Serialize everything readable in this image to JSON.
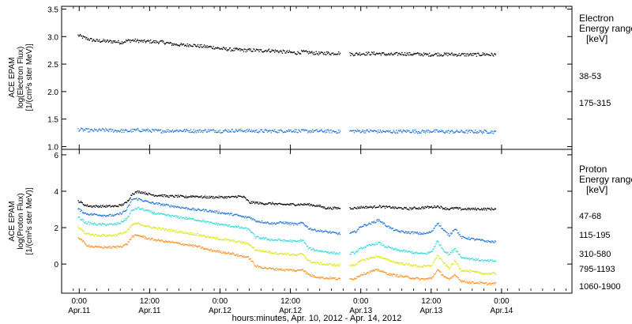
{
  "chart_data": [
    {
      "type": "scatter",
      "panel": "electron",
      "ylabel_lines": [
        "ACE EPAM",
        "log(Electron Flux)",
        "[1/(cm²s ster MeV)]"
      ],
      "ylim": [
        0.95,
        3.55
      ],
      "y_ticks": [
        1.0,
        1.5,
        2.0,
        2.5,
        3.0,
        3.5
      ],
      "y_tick_labels": [
        "1.0",
        "1.5",
        "2.0",
        "2.5",
        "3.0",
        "3.5"
      ],
      "legend_title_lines": [
        "Electron",
        "Energy ranges",
        "[keV]"
      ],
      "legend_placement": "right",
      "series": [
        {
          "name": "38-53",
          "color": "#000000",
          "x": [
            -0.25,
            0.5,
            1,
            2,
            3,
            4,
            5,
            6,
            7,
            8,
            9,
            10,
            11,
            12,
            13,
            14,
            15,
            16,
            17,
            18,
            19,
            20,
            21,
            22,
            23,
            24,
            25,
            26,
            27,
            28,
            29,
            30,
            31,
            32,
            33,
            34,
            35,
            36,
            37,
            38,
            39,
            40,
            41,
            42,
            43,
            44,
            45,
            46,
            47,
            48,
            49,
            50,
            51,
            52,
            53,
            54,
            55,
            56,
            57,
            58,
            59,
            60,
            61,
            62,
            63,
            64,
            65,
            66,
            67,
            68,
            69,
            70,
            71
          ],
          "y": [
            3.03,
            3.0,
            2.98,
            2.95,
            2.93,
            2.93,
            2.92,
            2.92,
            2.9,
            2.93,
            2.94,
            2.93,
            2.92,
            2.92,
            2.91,
            2.91,
            2.89,
            2.87,
            2.86,
            2.85,
            2.86,
            2.84,
            2.83,
            2.82,
            2.81,
            2.79,
            2.78,
            2.77,
            2.77,
            2.76,
            2.76,
            2.76,
            2.75,
            2.76,
            2.75,
            2.74,
            2.73,
            2.72,
            2.71,
            2.73,
            2.72,
            2.71,
            2.7,
            2.71,
            2.7,
            2.71,
            2.7,
            2.69,
            2.69,
            2.7,
            2.7,
            2.7,
            2.7,
            2.69,
            2.68,
            2.69,
            2.7,
            2.69,
            2.69,
            2.69,
            2.68,
            2.68,
            2.69,
            2.68,
            2.69,
            2.68,
            2.68,
            2.68,
            2.68,
            2.68,
            2.69,
            2.68,
            2.68
          ]
        },
        {
          "name": "175-315",
          "color": "#1a73d9",
          "x": [
            -0.25,
            2,
            4,
            6,
            8,
            10,
            12,
            14,
            16,
            18,
            20,
            22,
            24,
            26,
            28,
            30,
            32,
            34,
            36,
            38,
            40,
            42,
            44,
            46,
            48,
            50,
            52,
            54,
            56,
            58,
            60,
            62,
            64,
            66,
            68,
            70,
            71
          ],
          "y": [
            1.32,
            1.3,
            1.31,
            1.3,
            1.29,
            1.31,
            1.3,
            1.29,
            1.3,
            1.3,
            1.29,
            1.3,
            1.29,
            1.3,
            1.3,
            1.29,
            1.29,
            1.29,
            1.3,
            1.29,
            1.29,
            1.29,
            1.28,
            1.29,
            1.29,
            1.29,
            1.28,
            1.28,
            1.29,
            1.28,
            1.29,
            1.28,
            1.28,
            1.28,
            1.28,
            1.28,
            1.27
          ]
        }
      ]
    },
    {
      "type": "scatter",
      "panel": "proton",
      "ylabel_lines": [
        "ACE EPAM",
        "log(Proton Flux)",
        "[1/(cm²s ster MeV)]"
      ],
      "ylim": [
        -1.6,
        6.3
      ],
      "y_ticks": [
        0,
        2,
        4,
        6
      ],
      "y_tick_labels": [
        "0",
        "2",
        "4",
        "6"
      ],
      "legend_title_lines": [
        "Proton",
        "Energy ranges",
        "[keV]"
      ],
      "legend_placement": "right",
      "series": [
        {
          "name": "47-68",
          "color": "#000000",
          "x": [
            -0.25,
            0.5,
            1,
            2,
            3,
            4,
            5,
            6,
            7,
            8,
            9,
            10,
            11,
            12,
            13,
            14,
            15,
            16,
            17,
            18,
            19,
            20,
            21,
            22,
            23,
            24,
            25,
            26,
            27,
            28,
            29,
            30,
            31,
            32,
            33,
            34,
            35,
            36,
            37,
            38,
            39,
            40,
            41,
            42,
            43,
            44,
            45,
            46,
            47,
            48,
            49,
            50,
            51,
            52,
            53,
            54,
            55,
            56,
            57,
            58,
            59,
            60,
            61,
            62,
            63,
            64,
            65,
            66,
            67,
            68,
            69,
            70,
            71
          ],
          "y": [
            3.5,
            3.35,
            3.25,
            3.2,
            3.2,
            3.2,
            3.2,
            3.2,
            3.25,
            3.4,
            3.9,
            4.0,
            3.95,
            3.85,
            3.8,
            3.8,
            3.75,
            3.75,
            3.75,
            3.7,
            3.75,
            3.75,
            3.7,
            3.7,
            3.7,
            3.7,
            3.7,
            3.7,
            3.75,
            3.7,
            3.4,
            3.4,
            3.35,
            3.35,
            3.35,
            3.3,
            3.3,
            3.3,
            3.3,
            3.3,
            3.3,
            3.25,
            3.2,
            3.1,
            3.1,
            3.1,
            3.1,
            3.1,
            3.1,
            3.15,
            3.15,
            3.15,
            3.2,
            3.15,
            3.15,
            3.1,
            3.1,
            3.05,
            3.1,
            3.1,
            3.15,
            3.15,
            3.2,
            3.1,
            3.05,
            3.1,
            3.05,
            3.05,
            3.05,
            3.05,
            3.05,
            3.05,
            3.05
          ]
        },
        {
          "name": "115-195",
          "color": "#1a73d9",
          "x": [
            -0.25,
            0.5,
            1,
            2,
            3,
            4,
            5,
            6,
            7,
            8,
            9,
            10,
            11,
            12,
            13,
            14,
            15,
            16,
            17,
            18,
            19,
            20,
            21,
            22,
            23,
            24,
            25,
            26,
            27,
            28,
            29,
            30,
            31,
            32,
            33,
            34,
            35,
            36,
            37,
            38,
            39,
            40,
            41,
            42,
            43,
            44,
            45,
            46,
            47,
            48,
            49,
            50,
            51,
            52,
            53,
            54,
            55,
            56,
            57,
            58,
            59,
            60,
            61,
            62,
            63,
            64,
            65,
            66,
            67,
            68,
            69,
            70,
            71
          ],
          "y": [
            3.05,
            2.9,
            2.8,
            2.75,
            2.75,
            2.7,
            2.7,
            2.7,
            2.8,
            3.0,
            3.6,
            3.6,
            3.5,
            3.4,
            3.35,
            3.3,
            3.25,
            3.2,
            3.15,
            3.1,
            3.05,
            3.0,
            3.0,
            2.95,
            2.9,
            2.85,
            2.8,
            2.75,
            2.7,
            2.6,
            2.6,
            2.4,
            2.35,
            2.3,
            2.25,
            2.3,
            2.3,
            2.25,
            2.2,
            2.3,
            2.0,
            1.9,
            1.85,
            1.8,
            1.75,
            1.7,
            1.7,
            1.7,
            1.8,
            2.1,
            2.2,
            2.3,
            2.45,
            2.2,
            2.0,
            1.85,
            1.8,
            1.75,
            1.75,
            1.7,
            1.7,
            1.8,
            2.3,
            1.9,
            1.6,
            2.0,
            1.5,
            1.45,
            1.4,
            1.35,
            1.3,
            1.25,
            1.25
          ]
        },
        {
          "name": "310-580",
          "color": "#33d6d6",
          "x": [
            -0.25,
            0.5,
            1,
            2,
            3,
            4,
            5,
            6,
            7,
            8,
            9,
            10,
            11,
            12,
            13,
            14,
            15,
            16,
            17,
            18,
            19,
            20,
            21,
            22,
            23,
            24,
            25,
            26,
            27,
            28,
            29,
            30,
            31,
            32,
            33,
            34,
            35,
            36,
            37,
            38,
            39,
            40,
            41,
            42,
            43,
            44,
            45,
            46,
            47,
            48,
            49,
            50,
            51,
            52,
            53,
            54,
            55,
            56,
            57,
            58,
            59,
            60,
            61,
            62,
            63,
            64,
            65,
            66,
            67,
            68,
            69,
            70,
            71
          ],
          "y": [
            2.6,
            2.45,
            2.3,
            2.25,
            2.2,
            2.2,
            2.2,
            2.2,
            2.3,
            2.5,
            3.0,
            3.1,
            3.0,
            2.9,
            2.8,
            2.75,
            2.7,
            2.65,
            2.6,
            2.55,
            2.5,
            2.45,
            2.4,
            2.3,
            2.25,
            2.2,
            2.15,
            2.1,
            2.05,
            2.0,
            1.9,
            1.5,
            1.45,
            1.4,
            1.35,
            1.35,
            1.3,
            1.3,
            1.25,
            1.35,
            0.9,
            0.8,
            0.75,
            0.7,
            0.65,
            0.6,
            0.6,
            0.6,
            0.65,
            0.9,
            1.0,
            1.1,
            1.2,
            1.0,
            0.9,
            0.8,
            0.75,
            0.7,
            0.65,
            0.6,
            0.6,
            0.7,
            1.3,
            0.8,
            0.55,
            0.9,
            0.4,
            0.35,
            0.3,
            0.25,
            0.2,
            0.2,
            0.2
          ]
        },
        {
          "name": "795-1193",
          "color": "#d9e61a",
          "x": [
            -0.25,
            0.5,
            1,
            2,
            3,
            4,
            5,
            6,
            7,
            8,
            9,
            10,
            11,
            12,
            13,
            14,
            15,
            16,
            17,
            18,
            19,
            20,
            21,
            22,
            23,
            24,
            25,
            26,
            27,
            28,
            29,
            30,
            31,
            32,
            33,
            34,
            35,
            36,
            37,
            38,
            39,
            40,
            41,
            42,
            43,
            44,
            45,
            46,
            47,
            48,
            49,
            50,
            51,
            52,
            53,
            54,
            55,
            56,
            57,
            58,
            59,
            60,
            61,
            62,
            63,
            64,
            65,
            66,
            67,
            68,
            69,
            70,
            71
          ],
          "y": [
            2.05,
            1.85,
            1.7,
            1.65,
            1.6,
            1.6,
            1.6,
            1.6,
            1.7,
            1.8,
            2.2,
            2.25,
            2.15,
            2.05,
            2.0,
            1.95,
            1.9,
            1.85,
            1.8,
            1.75,
            1.7,
            1.65,
            1.6,
            1.5,
            1.45,
            1.4,
            1.35,
            1.3,
            1.25,
            1.2,
            1.1,
            0.8,
            0.75,
            0.7,
            0.65,
            0.6,
            0.6,
            0.55,
            0.5,
            0.6,
            0.2,
            0.1,
            0.05,
            0.0,
            0.0,
            -0.05,
            -0.05,
            -0.05,
            0.0,
            0.2,
            0.3,
            0.4,
            0.45,
            0.3,
            0.2,
            0.1,
            0.05,
            0.0,
            -0.05,
            -0.1,
            -0.1,
            -0.05,
            0.5,
            0.1,
            -0.2,
            0.2,
            -0.3,
            -0.35,
            -0.4,
            -0.45,
            -0.5,
            -0.5,
            -0.5
          ]
        },
        {
          "name": "1060-1900",
          "color": "#ff8c1a",
          "x": [
            -0.25,
            0.5,
            1,
            2,
            3,
            4,
            5,
            6,
            7,
            8,
            9,
            10,
            11,
            12,
            13,
            14,
            15,
            16,
            17,
            18,
            19,
            20,
            21,
            22,
            23,
            24,
            25,
            26,
            27,
            28,
            29,
            30,
            31,
            32,
            33,
            34,
            35,
            36,
            37,
            38,
            39,
            40,
            41,
            42,
            43,
            44,
            45,
            46,
            47,
            48,
            49,
            50,
            51,
            52,
            53,
            54,
            55,
            56,
            57,
            58,
            59,
            60,
            61,
            62,
            63,
            64,
            65,
            66,
            67,
            68,
            69,
            70,
            71
          ],
          "y": [
            1.5,
            1.3,
            1.1,
            1.0,
            0.95,
            0.95,
            0.95,
            0.95,
            1.0,
            1.1,
            1.55,
            1.6,
            1.5,
            1.4,
            1.35,
            1.3,
            1.25,
            1.2,
            1.15,
            1.1,
            1.05,
            1.0,
            0.9,
            0.8,
            0.75,
            0.7,
            0.65,
            0.6,
            0.5,
            0.45,
            0.35,
            -0.1,
            -0.15,
            -0.2,
            -0.25,
            -0.25,
            -0.3,
            -0.3,
            -0.35,
            -0.25,
            -0.55,
            -0.65,
            -0.7,
            -0.75,
            -0.75,
            -0.8,
            -0.8,
            -0.8,
            -0.75,
            -0.55,
            -0.45,
            -0.35,
            -0.3,
            -0.45,
            -0.55,
            -0.6,
            -0.65,
            -0.7,
            -0.75,
            -0.8,
            -0.8,
            -0.75,
            -0.3,
            -0.6,
            -0.85,
            -0.55,
            -0.9,
            -0.95,
            -1.0,
            -1.0,
            -1.05,
            -1.05,
            -1.05
          ]
        }
      ]
    }
  ],
  "x_axis": {
    "xlabel": "hours:minutes, Apr. 10, 2012 - Apr. 14, 2012",
    "xlim": [
      -3,
      84
    ],
    "ticks": [
      {
        "x": 0,
        "time": "0:00",
        "date": "Apr.11"
      },
      {
        "x": 12,
        "time": "12:00",
        "date": "Apr.11"
      },
      {
        "x": 24,
        "time": "0:00",
        "date": "Apr.12"
      },
      {
        "x": 36,
        "time": "12:00",
        "date": "Apr.12"
      },
      {
        "x": 48,
        "time": "0:00",
        "date": "Apr.13"
      },
      {
        "x": 60,
        "time": "12:00",
        "date": "Apr.13"
      },
      {
        "x": 72,
        "time": "0:00",
        "date": "Apr.14"
      }
    ]
  },
  "data_gap": [
    44.5,
    46.0
  ]
}
